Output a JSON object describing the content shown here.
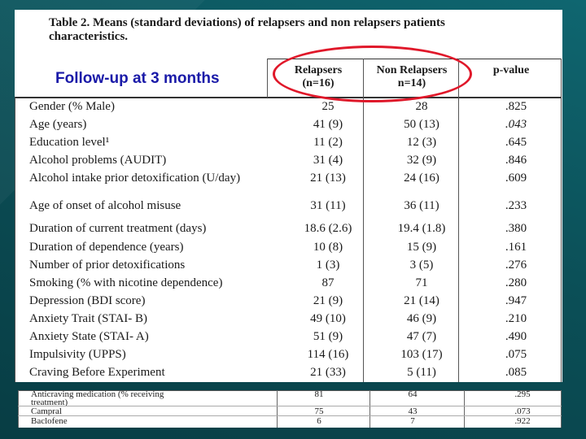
{
  "caption": "Table 2. Means (standard deviations) of relapsers and non relapsers patients characteristics.",
  "followup_label": "Follow-up at 3 months",
  "highlight_color": "#e0182a",
  "followup_color": "#1a1aa8",
  "headers": {
    "relapsers_line1": "Relapsers",
    "relapsers_line2": "(n=16)",
    "non_relapsers_line1": "Non Relapsers",
    "non_relapsers_line2": "n=14)",
    "pvalue": "p-value"
  },
  "rows": [
    {
      "label": "Gender (% Male)",
      "relapsers": "25",
      "non_relapsers": "28",
      "p": ".825"
    },
    {
      "label": "Age (years)",
      "relapsers": "41 (9)",
      "non_relapsers": "50 (13)",
      "p": ".043"
    },
    {
      "label": "Education level¹",
      "relapsers": "11 (2)",
      "non_relapsers": "12 (3)",
      "p": ".645"
    },
    {
      "label": "Alcohol problems (AUDIT)",
      "relapsers": "31 (4)",
      "non_relapsers": "32 (9)",
      "p": ".846"
    },
    {
      "label": "Alcohol intake prior detoxification (U/day)",
      "relapsers": "21 (13)",
      "non_relapsers": "24 (16)",
      "p": ".609"
    },
    {
      "label": "Age of onset of alcohol misuse",
      "relapsers": "31 (11)",
      "non_relapsers": "36 (11)",
      "p": ".233"
    },
    {
      "label": "Duration of current treatment (days)",
      "relapsers": "18.6 (2.6)",
      "non_relapsers": "19.4 (1.8)",
      "p": ".380"
    },
    {
      "label": "Duration of dependence (years)",
      "relapsers": "10 (8)",
      "non_relapsers": "15 (9)",
      "p": ".161"
    },
    {
      "label": "Number of prior detoxifications",
      "relapsers": "1 (3)",
      "non_relapsers": "3 (5)",
      "p": ".276"
    },
    {
      "label": "Smoking (% with nicotine dependence)",
      "relapsers": "87",
      "non_relapsers": "71",
      "p": ".280"
    },
    {
      "label": "Depression (BDI score)",
      "relapsers": "21 (9)",
      "non_relapsers": "21 (14)",
      "p": ".947"
    },
    {
      "label": "Anxiety Trait (STAI- B)",
      "relapsers": "49 (10)",
      "non_relapsers": "46 (9)",
      "p": ".210"
    },
    {
      "label": "Anxiety State (STAI- A)",
      "relapsers": "51 (9)",
      "non_relapsers": "47 (7)",
      "p": ".490"
    },
    {
      "label": "Impulsivity (UPPS)",
      "relapsers": "114 (16)",
      "non_relapsers": "103 (17)",
      "p": ".075"
    },
    {
      "label": "Craving Before Experiment",
      "relapsers": "21 (33)",
      "non_relapsers": "5 (11)",
      "p": ".085"
    }
  ],
  "bottom_rows": [
    {
      "label": "Anticraving medication (% receiving",
      "relapsers": "81",
      "non_relapsers": "64",
      "p": ".295"
    },
    {
      "label": "treatment)",
      "relapsers": "",
      "non_relapsers": "",
      "p": ""
    },
    {
      "label": "Campral",
      "relapsers": "75",
      "non_relapsers": "43",
      "p": ".073"
    },
    {
      "label": "Baclofene",
      "relapsers": "6",
      "non_relapsers": "7",
      "p": ".922"
    }
  ]
}
